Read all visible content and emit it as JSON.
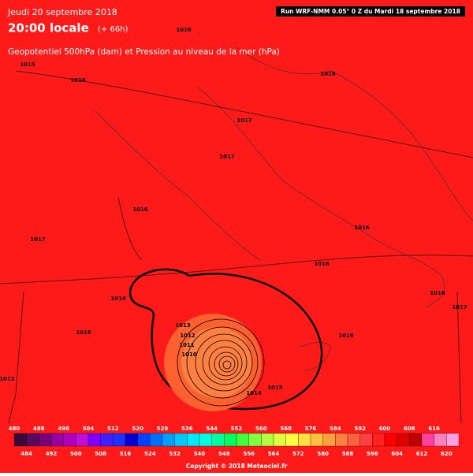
{
  "header": {
    "date": "Jeudi 20 septembre 2018",
    "time": "20:00 locale",
    "offset": "(+ 66h)",
    "subtitle": "Geopotentiel 500hPa (dam) et Pression au niveau de la mer (hPa)",
    "run": "Run WRF-NMM 0.05° 0 Z du Mardi 18 septembre 2018"
  },
  "isobar_labels": [
    "1016",
    "1015",
    "1016",
    "1018",
    "1017",
    "1017",
    "1016",
    "1016",
    "1017",
    "1016",
    "1014",
    "1016",
    "1017",
    "1016",
    "1013",
    "1012",
    "1011",
    "1010",
    "1016",
    "1014",
    "1015",
    "1012"
  ],
  "legend": {
    "top_labels": [
      "480",
      "488",
      "496",
      "504",
      "512",
      "520",
      "528",
      "536",
      "544",
      "552",
      "560",
      "568",
      "576",
      "584",
      "592",
      "600",
      "608",
      "616"
    ],
    "bottom_labels": [
      "484",
      "492",
      "500",
      "508",
      "516",
      "524",
      "532",
      "540",
      "548",
      "556",
      "564",
      "572",
      "580",
      "588",
      "596",
      "604",
      "612",
      "620"
    ],
    "colors": [
      "#3a0a3a",
      "#5a0a5a",
      "#7a007a",
      "#9a00a0",
      "#b000c0",
      "#c010d8",
      "#8000ff",
      "#4020ff",
      "#2030ff",
      "#0000d0",
      "#0040ff",
      "#0070ff",
      "#00a0ff",
      "#00c8ff",
      "#00e8ff",
      "#00ffe0",
      "#00ffa0",
      "#00ff60",
      "#40ff40",
      "#80ff40",
      "#b0ff40",
      "#e0ff40",
      "#ffff40",
      "#ffe040",
      "#ffc040",
      "#ffa040",
      "#ff8040",
      "#ff6040",
      "#ff4040",
      "#ff2020",
      "#ff0000",
      "#e00000",
      "#c00000",
      "#ff40a0",
      "#ff80c0",
      "#ffa0e0"
    ]
  },
  "copyright": "Copyright © 2018 Meteociel.fr"
}
